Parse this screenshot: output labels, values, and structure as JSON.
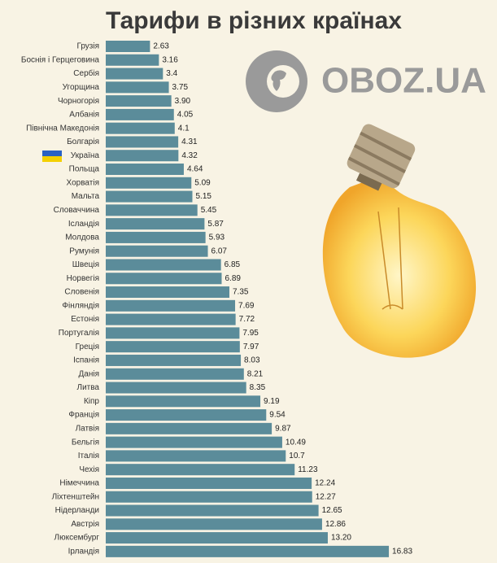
{
  "logo": "OBOZ.UA",
  "chart_data": {
    "type": "barh",
    "title": "Тарифи в різних країнах",
    "color": "#5b8c9a",
    "categories": [
      "Грузія",
      "Боснія і Герцеговина",
      "Сербія",
      "Угорщина",
      "Чорногорія",
      "Албанія",
      "Північна Македонія",
      "Болгарія",
      "Україна",
      "Польща",
      "Хорватія",
      "Мальта",
      "Словаччина",
      "Ісландія",
      "Молдова",
      "Румунія",
      "Швеція",
      "Норвегія",
      "Словенія",
      "Фінляндія",
      "Естонія",
      "Португалія",
      "Греція",
      "Іспанія",
      "Данія",
      "Литва",
      "Кіпр",
      "Франція",
      "Латвія",
      "Бельгія",
      "Італія",
      "Чехія",
      "Німеччина",
      "Ліхтенштейн",
      "Нідерланди",
      "Австрія",
      "Люксембург",
      "Ірландія"
    ],
    "values": [
      2.63,
      3.16,
      3.4,
      3.75,
      3.9,
      4.05,
      4.1,
      4.31,
      4.32,
      4.64,
      5.09,
      5.15,
      5.45,
      5.87,
      5.93,
      6.07,
      6.85,
      6.89,
      7.35,
      7.69,
      7.72,
      7.95,
      7.97,
      8.03,
      8.21,
      8.35,
      9.19,
      9.54,
      9.87,
      10.49,
      10.7,
      11.23,
      12.24,
      12.27,
      12.65,
      12.86,
      13.2,
      16.83
    ],
    "value_labels": [
      "2.63",
      "3.16",
      "3.4",
      "3.75",
      "3.90",
      "4.05",
      "4.1",
      "4.31",
      "4.32",
      "4.64",
      "5.09",
      "5.15",
      "5.45",
      "5.87",
      "5.93",
      "6.07",
      "6.85",
      "6.89",
      "7.35",
      "7.69",
      "7.72",
      "7.95",
      "7.97",
      "8.03",
      "8.21",
      "8.35",
      "9.19",
      "9.54",
      "9.87",
      "10.49",
      "10.7",
      "11.23",
      "12.24",
      "12.27",
      "12.65",
      "12.86",
      "13.20",
      "16.83"
    ]
  }
}
